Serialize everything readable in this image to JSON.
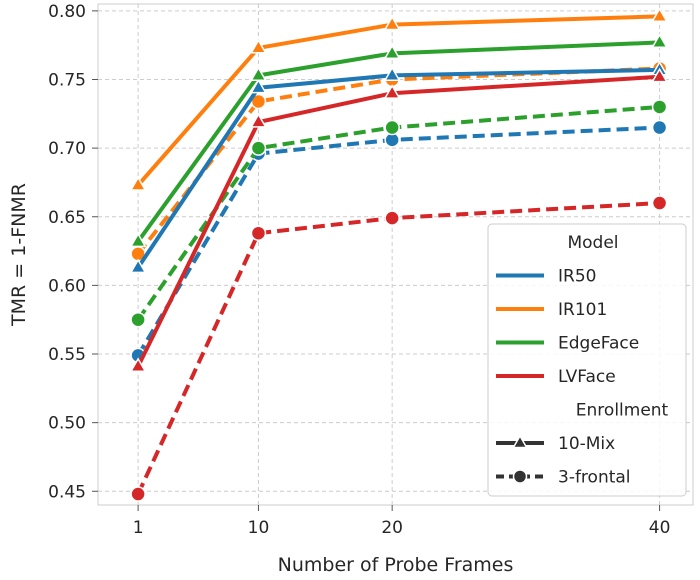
{
  "chart_data": {
    "type": "line",
    "xlabel": "Number of Probe Frames",
    "ylabel": "TMR = 1-FNMR",
    "x": [
      1,
      10,
      20,
      40
    ],
    "xticks": [
      "1",
      "10",
      "20",
      "40"
    ],
    "yticks": [
      "0.45",
      "0.50",
      "0.55",
      "0.60",
      "0.65",
      "0.70",
      "0.75",
      "0.80"
    ],
    "ylim": [
      0.44,
      0.805
    ],
    "grid": true,
    "legend_position": "lower-right",
    "legend": {
      "model_title": "Model",
      "enrollment_title": "Enrollment",
      "models": [
        {
          "name": "IR50",
          "color": "#1f77b4"
        },
        {
          "name": "IR101",
          "color": "#ff7f0e"
        },
        {
          "name": "EdgeFace",
          "color": "#2ca02c"
        },
        {
          "name": "LVFace",
          "color": "#d62728"
        }
      ],
      "enrollments": [
        {
          "name": "10-Mix",
          "marker": "triangle",
          "dash": "solid"
        },
        {
          "name": "3-frontal",
          "marker": "circle",
          "dash": "dashed"
        }
      ]
    },
    "series": [
      {
        "model": "IR50",
        "enrollment": "10-Mix",
        "color": "#1f77b4",
        "marker": "triangle",
        "dash": "solid",
        "values": [
          0.613,
          0.744,
          0.753,
          0.757
        ]
      },
      {
        "model": "IR101",
        "enrollment": "10-Mix",
        "color": "#ff7f0e",
        "marker": "triangle",
        "dash": "solid",
        "values": [
          0.673,
          0.773,
          0.79,
          0.796
        ]
      },
      {
        "model": "EdgeFace",
        "enrollment": "10-Mix",
        "color": "#2ca02c",
        "marker": "triangle",
        "dash": "solid",
        "values": [
          0.632,
          0.753,
          0.769,
          0.777
        ]
      },
      {
        "model": "LVFace",
        "enrollment": "10-Mix",
        "color": "#d62728",
        "marker": "triangle",
        "dash": "solid",
        "values": [
          0.541,
          0.719,
          0.74,
          0.752
        ]
      },
      {
        "model": "IR50",
        "enrollment": "3-frontal",
        "color": "#1f77b4",
        "marker": "circle",
        "dash": "dashed",
        "values": [
          0.549,
          0.696,
          0.706,
          0.715
        ]
      },
      {
        "model": "IR101",
        "enrollment": "3-frontal",
        "color": "#ff7f0e",
        "marker": "circle",
        "dash": "dashed",
        "values": [
          0.623,
          0.734,
          0.75,
          0.758
        ]
      },
      {
        "model": "EdgeFace",
        "enrollment": "3-frontal",
        "color": "#2ca02c",
        "marker": "circle",
        "dash": "dashed",
        "values": [
          0.575,
          0.7,
          0.715,
          0.73
        ]
      },
      {
        "model": "LVFace",
        "enrollment": "3-frontal",
        "color": "#d62728",
        "marker": "circle",
        "dash": "dashed",
        "values": [
          0.448,
          0.638,
          0.649,
          0.66
        ]
      }
    ]
  }
}
